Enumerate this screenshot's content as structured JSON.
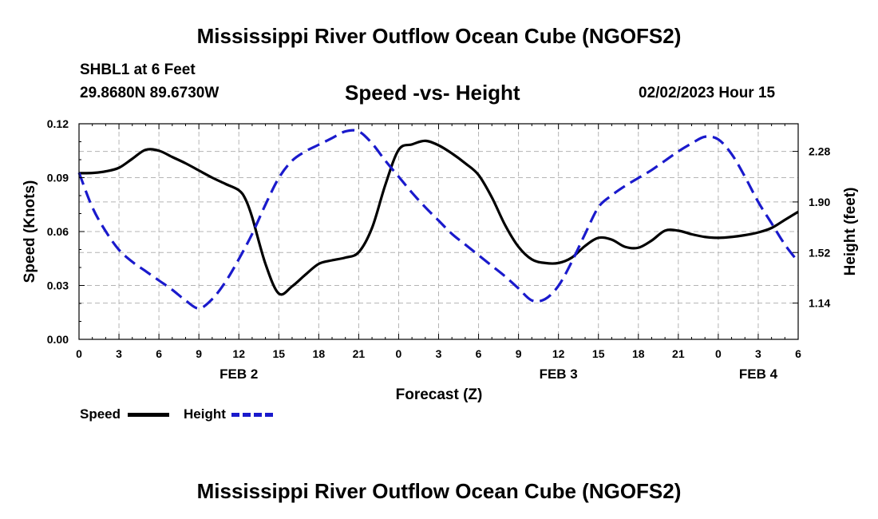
{
  "header": {
    "title": "Mississippi River Outflow Ocean Cube (NGOFS2)",
    "station": "SHBL1 at 6 Feet",
    "coordinates": "29.8680N  89.6730W",
    "subtitle": "Speed -vs- Height",
    "datetime": "02/02/2023 Hour 15"
  },
  "footer": {
    "title": "Mississippi River Outflow Ocean Cube (NGOFS2)"
  },
  "legend": {
    "speed_label": "Speed",
    "height_label": "Height"
  },
  "colors": {
    "speed": "#000000",
    "height": "#1a1acc",
    "grid": "#b4b4b4"
  },
  "chart_data": {
    "type": "line",
    "title": "Speed -vs- Height",
    "xlabel": "Forecast (Z)",
    "ylabel": "Speed (Knots)",
    "y2label": "Height (feet)",
    "xlim": [
      0,
      54
    ],
    "ylim": [
      0,
      0.12
    ],
    "y2lim": [
      0.8675,
      2.4875
    ],
    "x_ticks": [
      0,
      3,
      6,
      9,
      12,
      15,
      18,
      21,
      24,
      27,
      30,
      33,
      36,
      39,
      42,
      45,
      48,
      51,
      54
    ],
    "x_tick_labels": [
      "0",
      "3",
      "6",
      "9",
      "12",
      "15",
      "18",
      "21",
      "0",
      "3",
      "6",
      "9",
      "12",
      "15",
      "18",
      "21",
      "0",
      "3",
      "6"
    ],
    "date_labels": [
      {
        "x": 12,
        "label": "FEB 2"
      },
      {
        "x": 36,
        "label": "FEB 3"
      },
      {
        "x": 51,
        "label": "FEB 4"
      }
    ],
    "y_ticks": [
      0,
      0.03,
      0.06,
      0.09,
      0.12
    ],
    "y_tick_labels": [
      "0.00",
      "0.03",
      "0.06",
      "0.09",
      "0.12"
    ],
    "y2_ticks": [
      1.14,
      1.52,
      1.9,
      2.28
    ],
    "y2_tick_labels": [
      "1.14",
      "1.52",
      "1.90",
      "2.28"
    ],
    "series": [
      {
        "name": "Speed",
        "axis": "left",
        "style": "solid",
        "x": [
          0,
          1,
          2,
          3,
          4,
          5,
          6,
          7,
          8,
          9,
          10,
          11,
          12,
          12.5,
          13,
          14,
          15,
          16,
          17,
          18,
          19,
          20,
          21,
          22,
          23,
          24,
          25,
          26,
          27,
          28,
          29,
          30,
          31,
          32,
          33,
          34,
          35,
          36,
          37,
          38,
          39,
          40,
          41,
          42,
          43,
          44,
          45,
          46,
          47,
          48,
          49,
          50,
          51,
          52,
          53,
          54
        ],
        "values": [
          0.0925,
          0.0926,
          0.0935,
          0.0955,
          0.1005,
          0.1055,
          0.105,
          0.1015,
          0.098,
          0.094,
          0.09,
          0.0865,
          0.083,
          0.078,
          0.068,
          0.042,
          0.0255,
          0.0295,
          0.036,
          0.042,
          0.044,
          0.0455,
          0.0485,
          0.062,
          0.086,
          0.1055,
          0.1085,
          0.1105,
          0.108,
          0.1035,
          0.098,
          0.0915,
          0.079,
          0.0635,
          0.0515,
          0.0445,
          0.0425,
          0.0425,
          0.0455,
          0.052,
          0.0565,
          0.0555,
          0.0515,
          0.051,
          0.055,
          0.0605,
          0.0605,
          0.0585,
          0.057,
          0.0565,
          0.057,
          0.058,
          0.0595,
          0.062,
          0.0665,
          0.071
        ]
      },
      {
        "name": "Height",
        "axis": "right",
        "style": "dashed",
        "x": [
          0,
          1,
          2,
          3,
          4,
          5,
          6,
          7,
          8,
          9,
          10,
          11,
          12,
          13,
          14,
          15,
          16,
          17,
          18,
          19,
          20,
          21,
          22,
          23,
          24,
          25,
          26,
          27,
          28,
          29,
          30,
          31,
          32,
          33,
          34,
          35,
          36,
          37,
          38,
          39,
          40,
          41,
          42,
          43,
          44,
          45,
          46,
          47,
          48,
          49,
          50,
          51,
          52,
          53,
          54
        ],
        "values": [
          2.12,
          1.86,
          1.68,
          1.54,
          1.45,
          1.38,
          1.31,
          1.24,
          1.16,
          1.1,
          1.17,
          1.3,
          1.47,
          1.66,
          1.88,
          2.08,
          2.21,
          2.28,
          2.33,
          2.38,
          2.43,
          2.43,
          2.34,
          2.21,
          2.09,
          1.97,
          1.86,
          1.76,
          1.66,
          1.58,
          1.5,
          1.42,
          1.34,
          1.25,
          1.16,
          1.17,
          1.27,
          1.45,
          1.66,
          1.86,
          1.95,
          2.02,
          2.08,
          2.14,
          2.21,
          2.28,
          2.34,
          2.39,
          2.37,
          2.26,
          2.09,
          1.9,
          1.74,
          1.58,
          1.45
        ]
      }
    ]
  }
}
